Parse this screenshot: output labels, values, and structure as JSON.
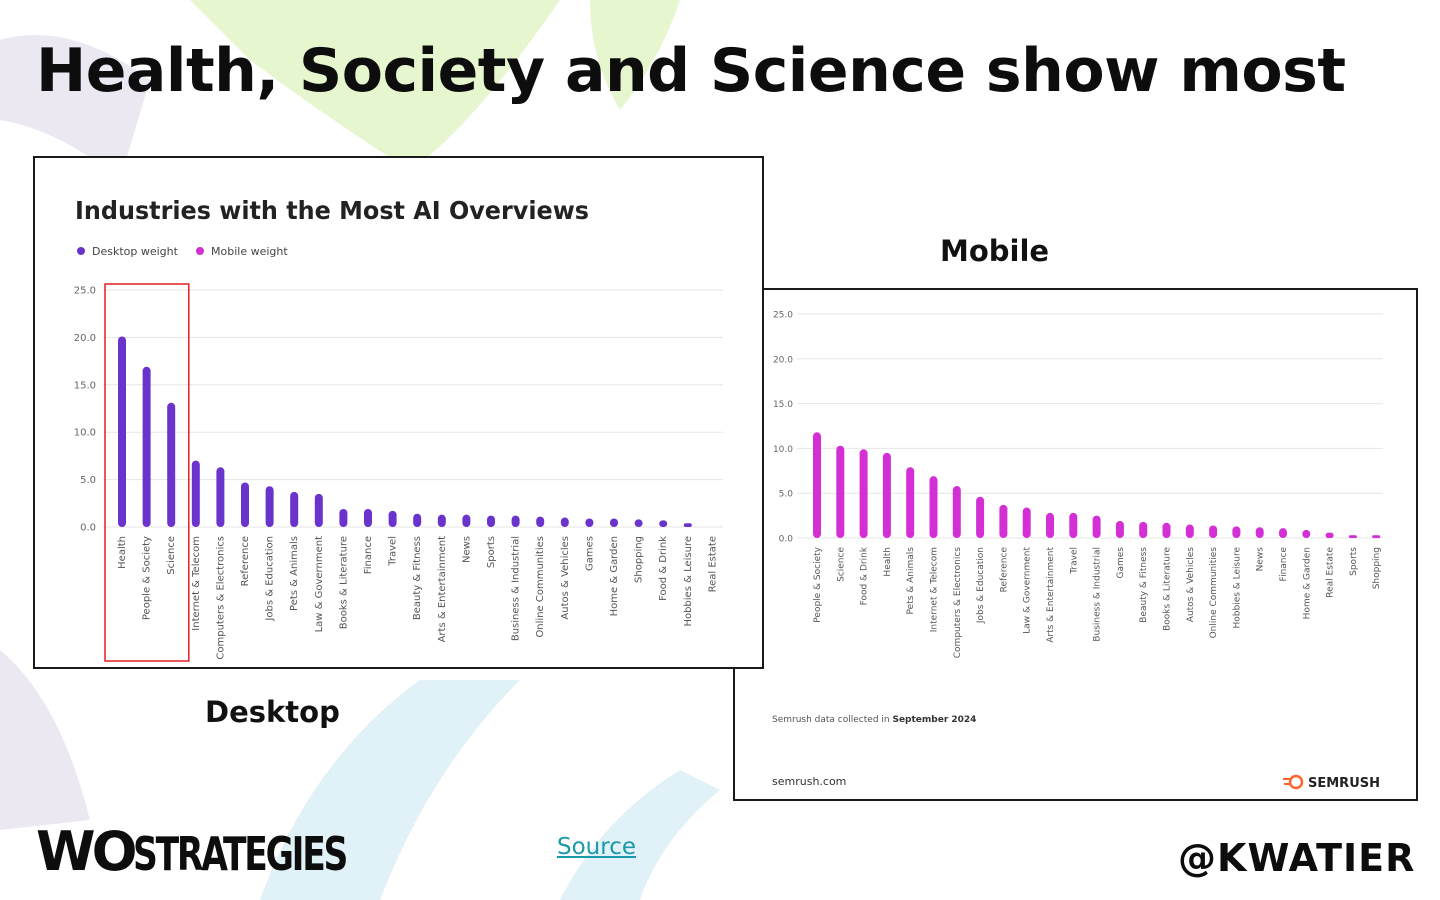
{
  "slide": {
    "title": "Health, Society and Science show most",
    "desktop_label": "Desktop",
    "mobile_label": "Mobile",
    "source_link": "Source",
    "logo_mark": "WO",
    "logo_text": "STRATEGIES",
    "handle": "@KWATIER"
  },
  "colors": {
    "desktop_bar": "#6a33cc",
    "mobile_bar": "#d42fd4",
    "highlight": "#e02020",
    "grid": "#e6e6e6",
    "deco_green": "#e6f7d0",
    "deco_lilac": "#ece8f2",
    "deco_blue": "#e0f1f7"
  },
  "chart_data": [
    {
      "type": "bar",
      "title": "Industries with the Most AI Overviews",
      "legend": [
        "Desktop weight",
        "Mobile weight"
      ],
      "legend_position": "top-left",
      "ylim": [
        0,
        25
      ],
      "yticks": [
        "0.0",
        "5.0",
        "10.0",
        "15.0",
        "20.0",
        "25.0"
      ],
      "grid": true,
      "highlight_box_categories": [
        "Health",
        "People & Society",
        "Science"
      ],
      "categories": [
        "Health",
        "People & Society",
        "Science",
        "Internet & Telecom",
        "Computers & Electronics",
        "Reference",
        "Jobs & Education",
        "Pets & Animals",
        "Law & Government",
        "Books & Literature",
        "Finance",
        "Travel",
        "Beauty & Fitness",
        "Arts & Entertainment",
        "News",
        "Sports",
        "Business & Industrial",
        "Online Communities",
        "Autos & Vehicles",
        "Games",
        "Home & Garden",
        "Shopping",
        "Food & Drink",
        "Hobbies & Leisure",
        "Real Estate"
      ],
      "series": [
        {
          "name": "Desktop weight",
          "values": [
            20.1,
            16.9,
            13.1,
            7.0,
            6.3,
            4.7,
            4.3,
            3.7,
            3.5,
            1.9,
            1.9,
            1.7,
            1.4,
            1.3,
            1.3,
            1.2,
            1.2,
            1.1,
            1.0,
            0.9,
            0.9,
            0.8,
            0.7,
            0.4,
            0.0
          ]
        }
      ]
    },
    {
      "type": "bar",
      "ylim": [
        0,
        25
      ],
      "yticks": [
        "0.0",
        "5.0",
        "10.0",
        "15.0",
        "20.0",
        "25.0"
      ],
      "grid": true,
      "categories": [
        "People & Society",
        "Science",
        "Food & Drink",
        "Health",
        "Pets & Animals",
        "Internet & Telecom",
        "Computers & Electronics",
        "Jobs & Education",
        "Reference",
        "Law & Government",
        "Arts & Entertainment",
        "Travel",
        "Business & Industrial",
        "Games",
        "Beauty & Fitness",
        "Books & Literature",
        "Autos & Vehicles",
        "Online Communities",
        "Hobbies & Leisure",
        "News",
        "Finance",
        "Home & Garden",
        "Real Estate",
        "Sports",
        "Shopping"
      ],
      "series": [
        {
          "values": [
            11.8,
            10.3,
            9.9,
            9.5,
            7.9,
            6.9,
            5.8,
            4.6,
            3.7,
            3.4,
            2.8,
            2.8,
            2.5,
            1.9,
            1.8,
            1.7,
            1.5,
            1.4,
            1.3,
            1.2,
            1.1,
            0.9,
            0.6,
            0.3,
            0.3
          ]
        }
      ],
      "footnote": "Semrush data collected in",
      "footnote_bold": "September 2024",
      "site": "semrush.com",
      "brand": "SEMRUSH"
    }
  ]
}
